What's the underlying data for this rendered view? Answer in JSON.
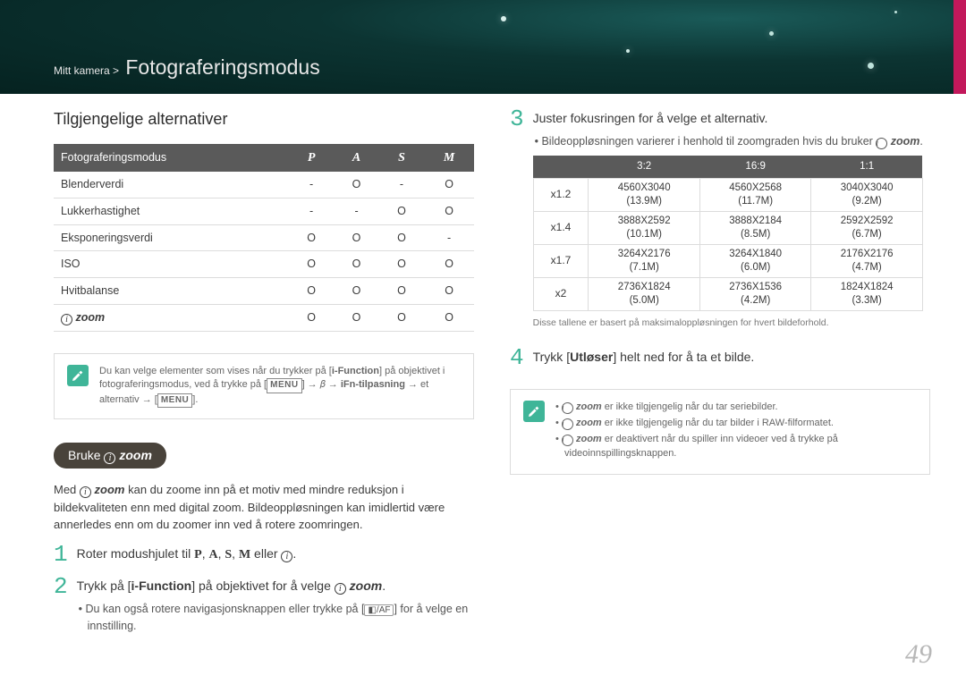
{
  "header": {
    "breadcrumb_parent": "Mitt kamera >",
    "breadcrumb_current": "Fotograferingsmodus"
  },
  "left": {
    "heading": "Tilgjengelige alternativer",
    "table": {
      "header_label": "Fotograferingsmodus",
      "modes": [
        "P",
        "A",
        "S",
        "M"
      ],
      "rows": [
        {
          "label": "Blenderverdi",
          "cells": [
            "-",
            "O",
            "-",
            "O"
          ]
        },
        {
          "label": "Lukkerhastighet",
          "cells": [
            "-",
            "-",
            "O",
            "O"
          ]
        },
        {
          "label": "Eksponeringsverdi",
          "cells": [
            "O",
            "O",
            "O",
            "-"
          ]
        },
        {
          "label": "ISO",
          "cells": [
            "O",
            "O",
            "O",
            "O"
          ]
        },
        {
          "label": "Hvitbalanse",
          "cells": [
            "O",
            "O",
            "O",
            "O"
          ]
        },
        {
          "label": "__izoom__",
          "cells": [
            "O",
            "O",
            "O",
            "O"
          ]
        }
      ]
    },
    "note": "Du kan velge elementer som vises når du trykker på [i-Function] på objektivet i fotograferingsmodus, ved å trykke på [MENU] → 𝛽 → iFn-tilpasning → et alternativ → [MENU].",
    "pill_prefix": "Bruke ",
    "para": "Med ⓘ zoom kan du zoome inn på et motiv med mindre reduksjon i bildekvaliteten enn med digital zoom. Bildeoppløsningen kan imidlertid være annerledes enn om du zoomer inn ved å rotere zoomringen.",
    "step1": "Roter modushjulet til P, A, S, M eller ⓘ.",
    "step2": "Trykk på [i-Function] på objektivet for å velge ⓘ zoom.",
    "step2_sub": "Du kan også rotere navigasjonsknappen eller trykke på [⬚/AF] for å velge en innstilling."
  },
  "right": {
    "step3": "Juster fokusringen for å velge et alternativ.",
    "step3_sub": "Bildeoppløsningen varierer i henhold til zoomgraden hvis du bruker ⓘ zoom.",
    "res_table": {
      "headers": [
        "",
        "3:2",
        "16:9",
        "1:1"
      ],
      "rows": [
        {
          "z": "x1.2",
          "c": [
            [
              "4560X3040",
              "(13.9M)"
            ],
            [
              "4560X2568",
              "(11.7M)"
            ],
            [
              "3040X3040",
              "(9.2M)"
            ]
          ]
        },
        {
          "z": "x1.4",
          "c": [
            [
              "3888X2592",
              "(10.1M)"
            ],
            [
              "3888X2184",
              "(8.5M)"
            ],
            [
              "2592X2592",
              "(6.7M)"
            ]
          ]
        },
        {
          "z": "x1.7",
          "c": [
            [
              "3264X2176",
              "(7.1M)"
            ],
            [
              "3264X1840",
              "(6.0M)"
            ],
            [
              "2176X2176",
              "(4.7M)"
            ]
          ]
        },
        {
          "z": "x2",
          "c": [
            [
              "2736X1824",
              "(5.0M)"
            ],
            [
              "2736X1536",
              "(4.2M)"
            ],
            [
              "1824X1824",
              "(3.3M)"
            ]
          ]
        }
      ]
    },
    "tiny_note": "Disse tallene er basert på maksimaloppløsningen for hvert bildeforhold.",
    "step4": "Trykk [Utløser] helt ned for å ta et bilde.",
    "note_lines": [
      "ⓘ zoom er ikke tilgjengelig når du tar seriebilder.",
      "ⓘ zoom er ikke tilgjengelig når du tar bilder i RAW-filformatet.",
      "ⓘ zoom er deaktivert når du spiller inn videoer ved å trykke på videoinnspillingsknappen."
    ]
  },
  "page_number": "49",
  "colors": {
    "accent": "#3fb598",
    "header_bg": "#0c3432",
    "magenta": "#c2185b",
    "table_header": "#5a5a5a",
    "border": "#dcdcdc"
  }
}
